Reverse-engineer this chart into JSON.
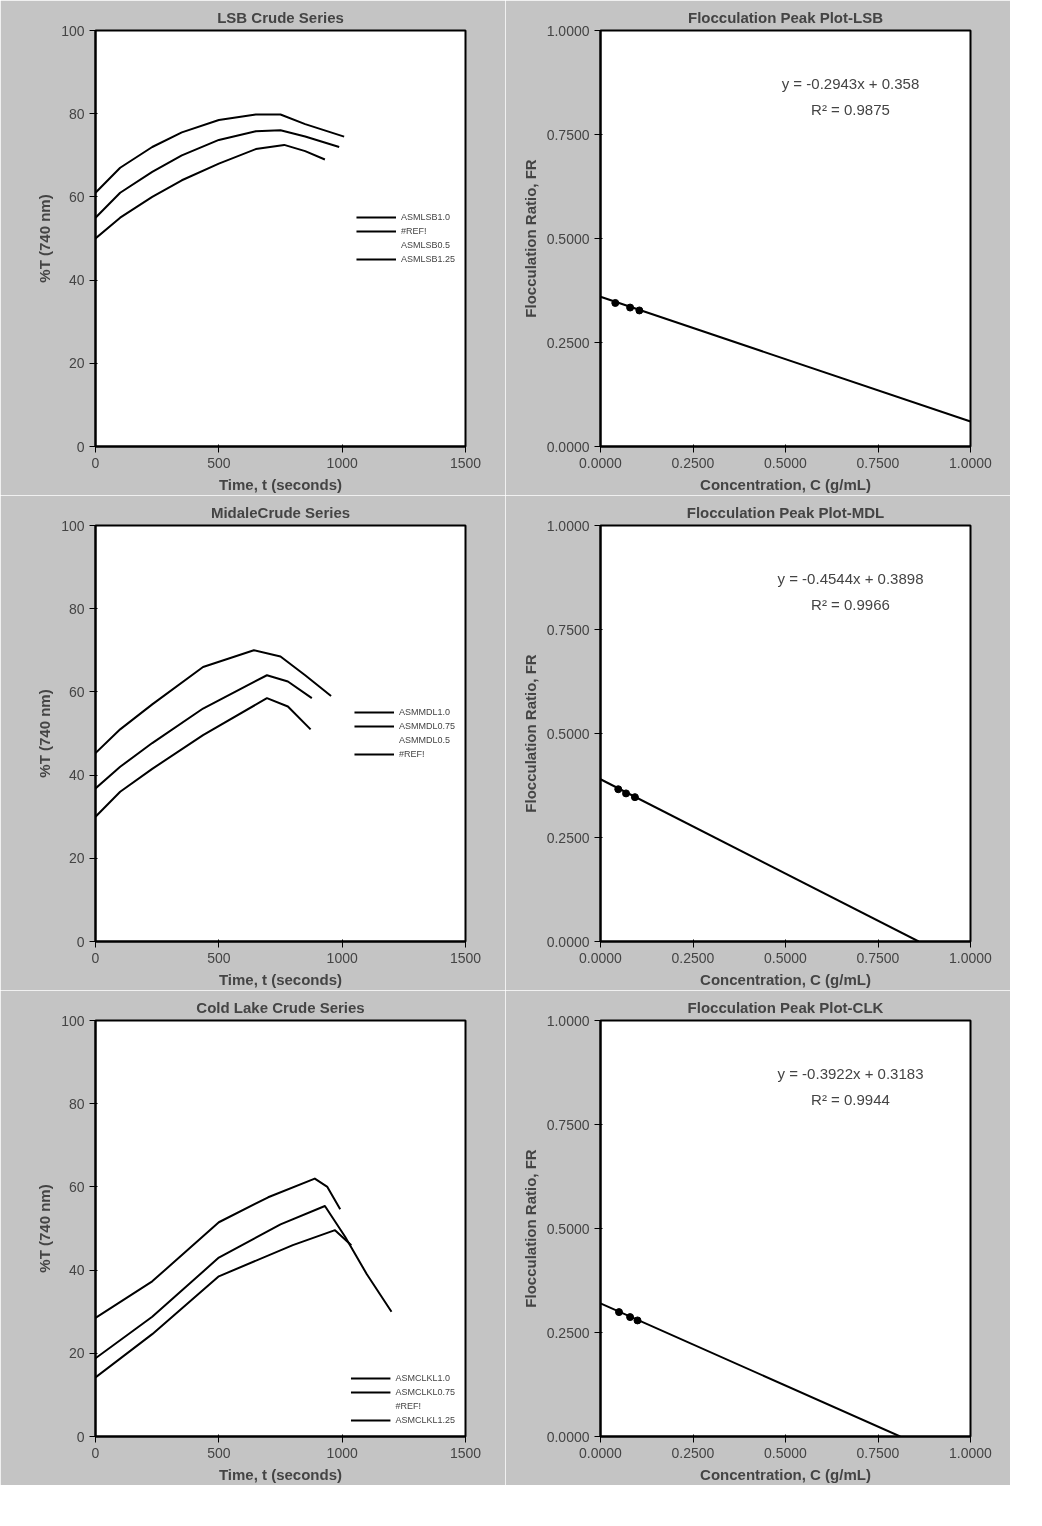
{
  "chart_data": [
    {
      "type": "line",
      "title": "LSB Crude Series",
      "xlabel": "Time, t (seconds)",
      "ylabel": "%T (740 nm)",
      "xlim": [
        0,
        1500
      ],
      "xticks": [
        0,
        500,
        1000,
        1500
      ],
      "ylim": [
        0,
        100
      ],
      "yticks": [
        0,
        20,
        40,
        60,
        80,
        100
      ],
      "grid": false,
      "legend": "right",
      "series": [
        {
          "name": "ASMLSB1.0",
          "color": "#000000",
          "x": [
            0,
            100,
            230,
            350,
            500,
            650,
            750,
            850,
            1008
          ],
          "values": [
            61,
            67,
            72,
            75.5,
            78.5,
            79.8,
            79.8,
            77.5,
            74.5
          ]
        },
        {
          "name": "#REF!",
          "color": "#000000",
          "x": [
            0,
            100,
            230,
            350,
            500,
            650,
            750,
            850,
            988
          ],
          "values": [
            55,
            61,
            66,
            70,
            73.7,
            75.8,
            76,
            74.5,
            72
          ]
        },
        {
          "name": "ASMLSB0.5"
        },
        {
          "name": "ASMLSB1.25",
          "color": "#000000",
          "x": [
            0,
            100,
            230,
            350,
            500,
            650,
            765,
            850,
            930
          ],
          "values": [
            50,
            55,
            60,
            64,
            68,
            71.5,
            72.5,
            71,
            69
          ]
        }
      ]
    },
    {
      "type": "scatter",
      "title": "Flocculation Peak Plot-LSB",
      "xlabel": "Concentration, C (g/mL)",
      "ylabel": "Flocculation Ratio, FR",
      "xlim": [
        0,
        1
      ],
      "xticks": [
        {
          "value": 0,
          "label": "0.0000"
        },
        {
          "value": 0.25,
          "label": "0.2500"
        },
        {
          "value": 0.5,
          "label": "0.5000"
        },
        {
          "value": 0.75,
          "label": "0.7500"
        },
        {
          "value": 1,
          "label": "1.0000"
        }
      ],
      "ylim": [
        0,
        1
      ],
      "yticks": [
        {
          "value": 0,
          "label": "0.0000"
        },
        {
          "value": 0.25,
          "label": "0.2500"
        },
        {
          "value": 0.5,
          "label": "0.5000"
        },
        {
          "value": 0.75,
          "label": "0.7500"
        },
        {
          "value": 1,
          "label": "1.0000"
        }
      ],
      "grid": false,
      "annotations": [
        "y = -0.2943x + 0.358",
        "R² = 0.9875"
      ],
      "series": [
        {
          "type": "scatter",
          "marker": "circle",
          "color": "#000000",
          "x": [
            0.04,
            0.08,
            0.105
          ],
          "values": [
            0.345,
            0.334,
            0.327
          ]
        },
        {
          "type": "line",
          "color": "#000000",
          "x": [
            0,
            1
          ],
          "values": [
            0.36,
            0.06
          ]
        }
      ]
    },
    {
      "type": "line",
      "title": "MidaleCrude Series",
      "xlabel": "Time, t (seconds)",
      "ylabel": "%T (740 nm)",
      "xlim": [
        0,
        1500
      ],
      "xticks": [
        0,
        500,
        1000,
        1500
      ],
      "ylim": [
        0,
        100
      ],
      "yticks": [
        0,
        20,
        40,
        60,
        80,
        100
      ],
      "grid": false,
      "legend": "right",
      "series": [
        {
          "name": "ASMMDL1.0",
          "color": "#000000",
          "x": [
            0,
            100,
            230,
            436,
            642,
            750,
            850,
            955
          ],
          "values": [
            45.3,
            51,
            57,
            66,
            70,
            68.5,
            64,
            59
          ]
        },
        {
          "name": "ASMMDL0.75",
          "color": "#000000",
          "x": [
            0,
            100,
            230,
            436,
            695,
            780,
            877
          ],
          "values": [
            36.8,
            42,
            47.7,
            56,
            64,
            62.5,
            58.5
          ]
        },
        {
          "name": "ASMMDL0.5"
        },
        {
          "name": "#REF!",
          "color": "#000000",
          "x": [
            0,
            100,
            230,
            436,
            695,
            780,
            872
          ],
          "values": [
            30,
            36,
            41.5,
            49.6,
            58.5,
            56.5,
            51
          ]
        }
      ]
    },
    {
      "type": "scatter",
      "title": "Flocculation Peak Plot-MDL",
      "xlabel": "Concentration, C (g/mL)",
      "ylabel": "Flocculation Ratio, FR",
      "xlim": [
        0,
        1
      ],
      "xticks": [
        {
          "value": 0,
          "label": "0.0000"
        },
        {
          "value": 0.25,
          "label": "0.2500"
        },
        {
          "value": 0.5,
          "label": "0.5000"
        },
        {
          "value": 0.75,
          "label": "0.7500"
        },
        {
          "value": 1,
          "label": "1.0000"
        }
      ],
      "ylim": [
        0,
        1
      ],
      "yticks": [
        {
          "value": 0,
          "label": "0.0000"
        },
        {
          "value": 0.25,
          "label": "0.2500"
        },
        {
          "value": 0.5,
          "label": "0.5000"
        },
        {
          "value": 0.75,
          "label": "0.7500"
        },
        {
          "value": 1,
          "label": "1.0000"
        }
      ],
      "grid": false,
      "annotations": [
        "y = -0.4544x + 0.3898",
        "R² = 0.9966"
      ],
      "series": [
        {
          "type": "scatter",
          "marker": "circle",
          "color": "#000000",
          "x": [
            0.048,
            0.069,
            0.093
          ],
          "values": [
            0.366,
            0.356,
            0.347
          ]
        },
        {
          "type": "line",
          "color": "#000000",
          "x": [
            0,
            0.86
          ],
          "values": [
            0.39,
            0
          ]
        }
      ]
    },
    {
      "type": "line",
      "title": "Cold Lake Crude Series",
      "xlabel": "Time, t (seconds)",
      "ylabel": "%T (740 nm)",
      "xlim": [
        0,
        1500
      ],
      "xticks": [
        0,
        500,
        1000,
        1500
      ],
      "ylim": [
        0,
        100
      ],
      "yticks": [
        0,
        20,
        40,
        60,
        80,
        100
      ],
      "grid": false,
      "legend": "bottom right",
      "series": [
        {
          "name": "ASMCLKL1.0",
          "color": "#000000",
          "x": [
            0,
            230,
            500,
            700,
            889,
            940,
            992
          ],
          "values": [
            28.5,
            37.3,
            51.5,
            57.5,
            62,
            60,
            54.6
          ]
        },
        {
          "name": "ASMCLKL0.75",
          "color": "#000000",
          "x": [
            0,
            230,
            500,
            750,
            930,
            1012,
            1100,
            1200
          ],
          "values": [
            18.8,
            28.8,
            43,
            51,
            55.4,
            48,
            39,
            30
          ]
        },
        {
          "name": "#REF!"
        },
        {
          "name": "ASMCLKL1.25",
          "color": "#000000",
          "x": [
            0,
            230,
            500,
            800,
            971,
            1037
          ],
          "values": [
            14.2,
            24.6,
            38.5,
            46,
            49.6,
            46
          ]
        }
      ]
    },
    {
      "type": "scatter",
      "title": "Flocculation Peak Plot-CLK",
      "xlabel": "Concentration, C (g/mL)",
      "ylabel": "Flocculation Ratio, FR",
      "xlim": [
        0,
        1
      ],
      "xticks": [
        {
          "value": 0,
          "label": "0.0000"
        },
        {
          "value": 0.25,
          "label": "0.2500"
        },
        {
          "value": 0.5,
          "label": "0.5000"
        },
        {
          "value": 0.75,
          "label": "0.7500"
        },
        {
          "value": 1,
          "label": "1.0000"
        }
      ],
      "ylim": [
        0,
        1
      ],
      "yticks": [
        {
          "value": 0,
          "label": "0.0000"
        },
        {
          "value": 0.25,
          "label": "0.2500"
        },
        {
          "value": 0.5,
          "label": "0.5000"
        },
        {
          "value": 0.75,
          "label": "0.7500"
        },
        {
          "value": 1,
          "label": "1.0000"
        }
      ],
      "grid": false,
      "annotations": [
        "y = -0.3922x + 0.3183",
        "R² = 0.9944"
      ],
      "series": [
        {
          "type": "scatter",
          "marker": "circle",
          "color": "#000000",
          "x": [
            0.05,
            0.08,
            0.1
          ],
          "values": [
            0.299,
            0.287,
            0.279
          ]
        },
        {
          "type": "line",
          "color": "#000000",
          "x": [
            0,
            0.81
          ],
          "values": [
            0.32,
            0
          ]
        }
      ]
    }
  ]
}
